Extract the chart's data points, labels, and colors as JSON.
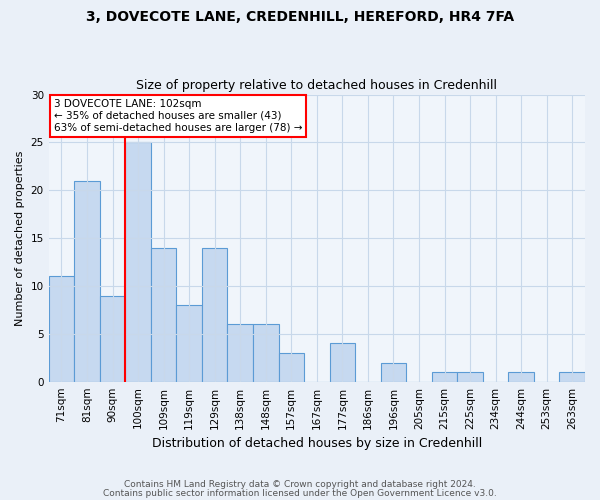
{
  "title": "3, DOVECOTE LANE, CREDENHILL, HEREFORD, HR4 7FA",
  "subtitle": "Size of property relative to detached houses in Credenhill",
  "xlabel": "Distribution of detached houses by size in Credenhill",
  "ylabel": "Number of detached properties",
  "footnote1": "Contains HM Land Registry data © Crown copyright and database right 2024.",
  "footnote2": "Contains public sector information licensed under the Open Government Licence v3.0.",
  "annotation_line1": "3 DOVECOTE LANE: 102sqm",
  "annotation_line2": "← 35% of detached houses are smaller (43)",
  "annotation_line3": "63% of semi-detached houses are larger (78) →",
  "bar_labels": [
    "71sqm",
    "81sqm",
    "90sqm",
    "100sqm",
    "109sqm",
    "119sqm",
    "129sqm",
    "138sqm",
    "148sqm",
    "157sqm",
    "167sqm",
    "177sqm",
    "186sqm",
    "196sqm",
    "205sqm",
    "215sqm",
    "225sqm",
    "234sqm",
    "244sqm",
    "253sqm",
    "263sqm"
  ],
  "bar_values": [
    11,
    21,
    9,
    25,
    14,
    8,
    14,
    6,
    6,
    3,
    0,
    4,
    0,
    2,
    0,
    1,
    1,
    0,
    1,
    0,
    1
  ],
  "bar_color": "#c6d9f0",
  "bar_edge_color": "#5b9bd5",
  "redline_x": 2.5,
  "ylim": [
    0,
    30
  ],
  "bg_color": "#eaf0f8",
  "plot_bg_color": "#f0f5fb",
  "grid_color": "#c8d8ea",
  "title_fontsize": 10,
  "subtitle_fontsize": 9,
  "ylabel_fontsize": 8,
  "xlabel_fontsize": 9,
  "tick_fontsize": 7.5,
  "annot_fontsize": 7.5,
  "footnote_fontsize": 6.5
}
